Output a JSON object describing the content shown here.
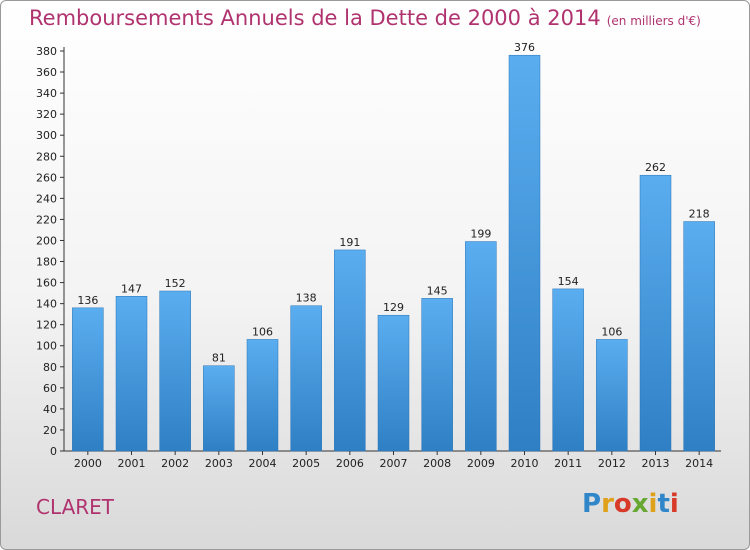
{
  "title": "Remboursements Annuels de la Dette de 2000 à 2014",
  "subtitle": "(en milliers d'€)",
  "town": "CLARET",
  "brand": [
    "P",
    "r",
    "o",
    "x",
    "i",
    "t",
    "i"
  ],
  "colors": {
    "bar": "#3d93d8",
    "bar_top": "#5aaef0",
    "title": "#b0336f"
  },
  "chart_data": {
    "type": "bar",
    "title": "Remboursements Annuels de la Dette de 2000 à 2014",
    "subtitle": "(en milliers d'€)",
    "xlabel": "",
    "ylabel": "",
    "categories": [
      "2000",
      "2001",
      "2002",
      "2003",
      "2004",
      "2005",
      "2006",
      "2007",
      "2008",
      "2009",
      "2010",
      "2011",
      "2012",
      "2013",
      "2014"
    ],
    "values": [
      136,
      147,
      152,
      81,
      106,
      138,
      191,
      129,
      145,
      199,
      376,
      154,
      106,
      262,
      218
    ],
    "ylim": [
      0,
      380
    ],
    "yticks": [
      0,
      20,
      40,
      60,
      80,
      100,
      120,
      140,
      160,
      180,
      200,
      220,
      240,
      260,
      280,
      300,
      320,
      340,
      360,
      380
    ],
    "grid": false,
    "legend": "none"
  }
}
